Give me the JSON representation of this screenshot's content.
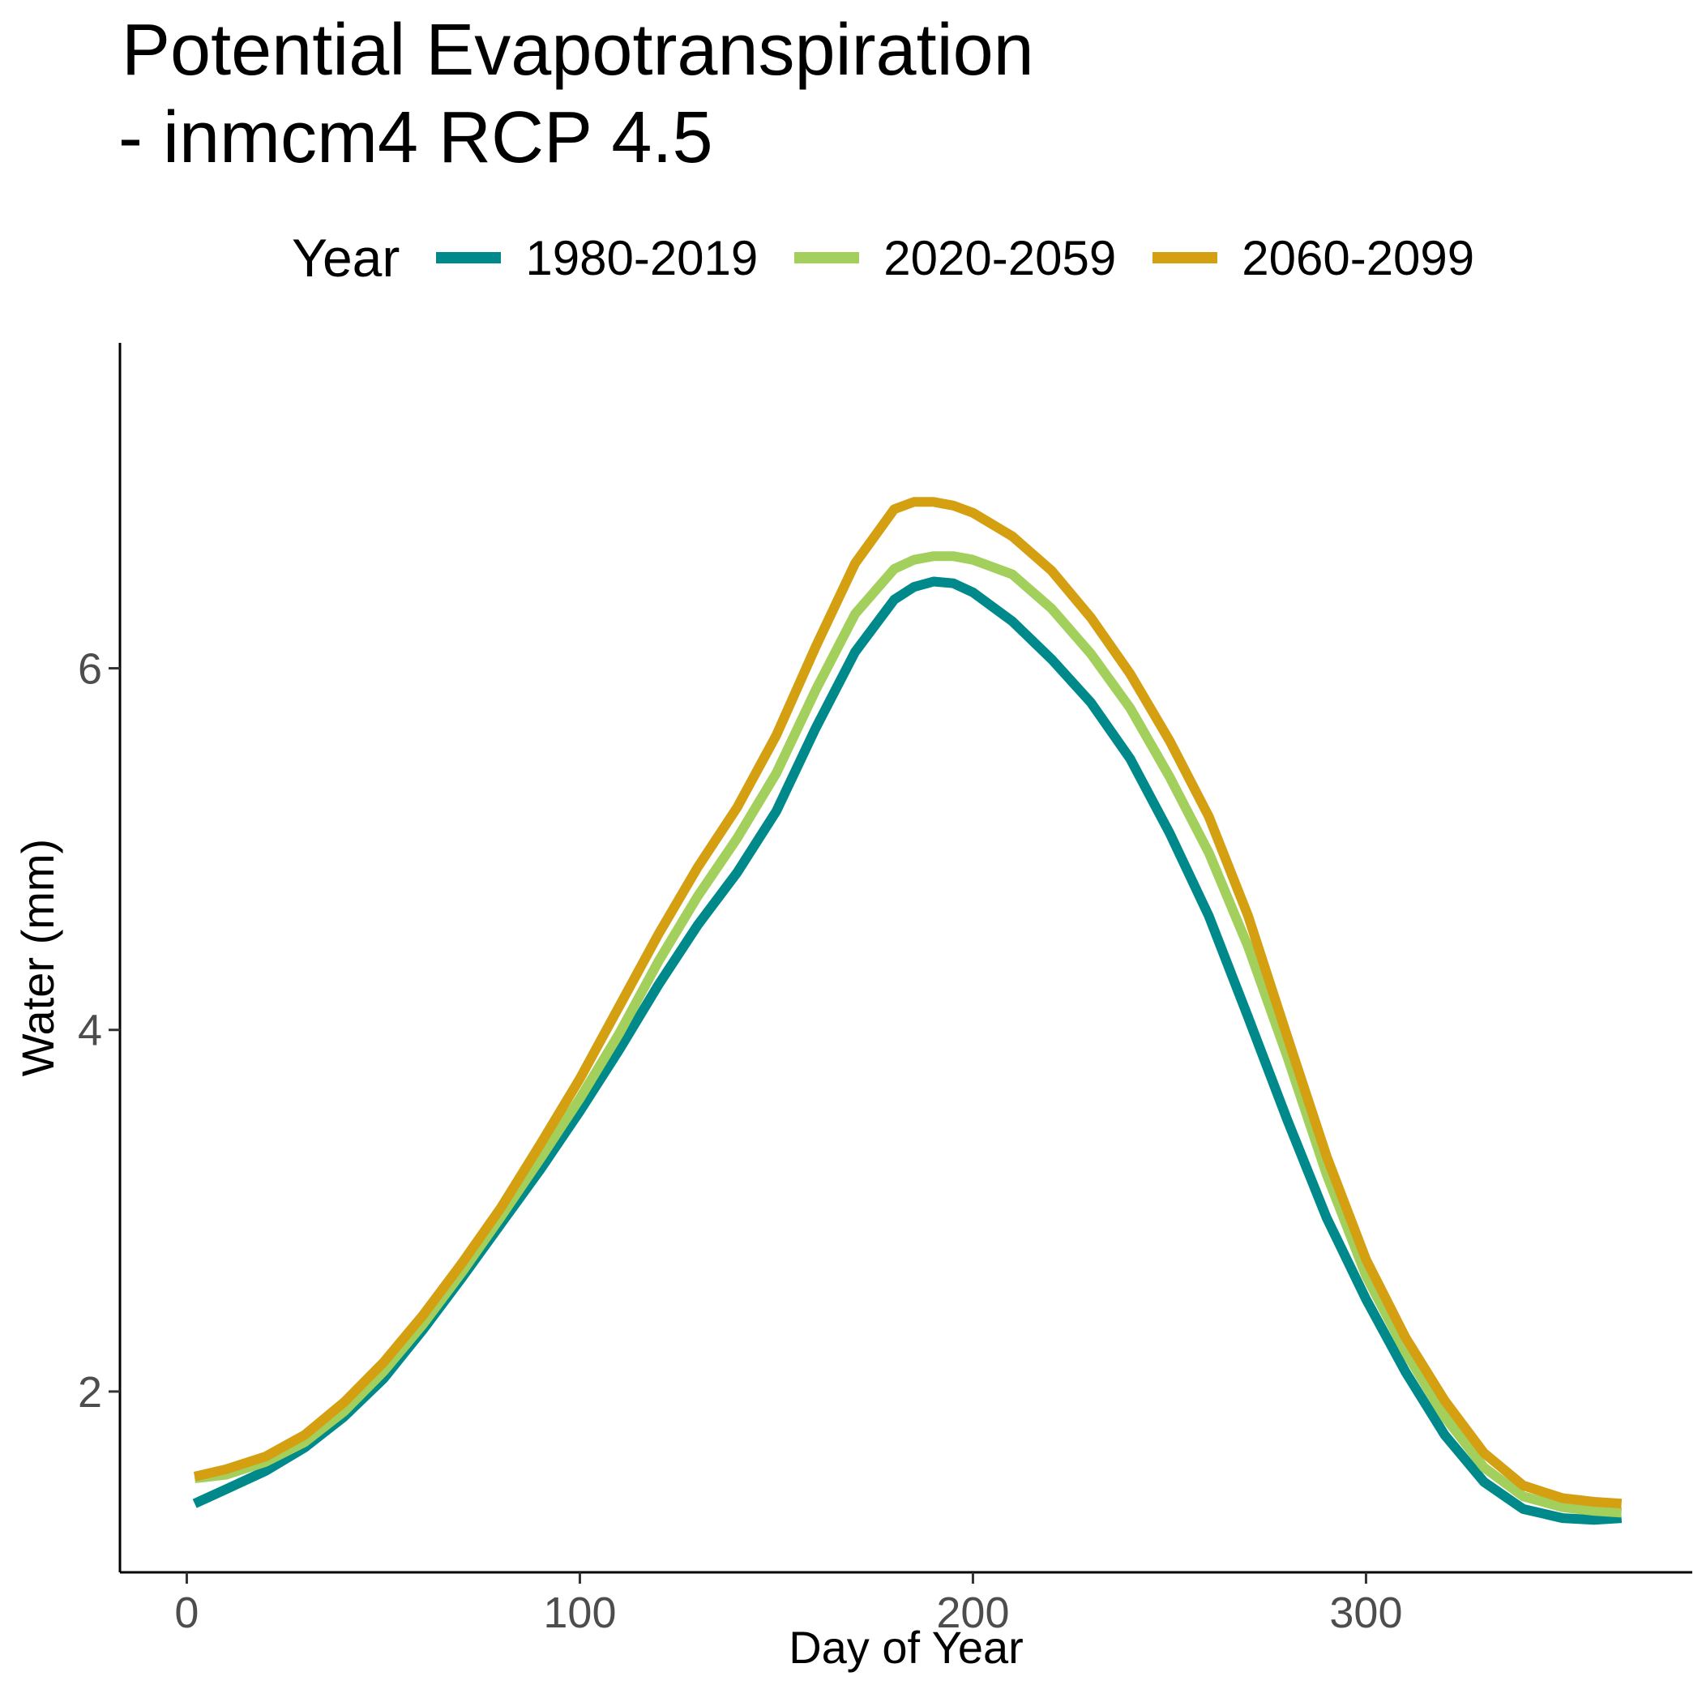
{
  "chart_data": {
    "type": "line",
    "title_line1": "Potential Evapotranspiration",
    "title_line2": "- inmcm4 RCP 4.5",
    "xlabel": "Day of Year",
    "ylabel": "Water (mm)",
    "legend_title": "Year",
    "legend_position": "top",
    "grid": false,
    "xlim": [
      -17,
      383
    ],
    "ylim": [
      1.0,
      7.8
    ],
    "x_ticks": [
      0,
      100,
      200,
      300
    ],
    "y_ticks": [
      2,
      4,
      6
    ],
    "x": [
      2,
      10,
      20,
      30,
      40,
      50,
      60,
      70,
      80,
      90,
      100,
      110,
      120,
      130,
      140,
      150,
      160,
      170,
      180,
      185,
      190,
      195,
      200,
      210,
      220,
      230,
      240,
      250,
      260,
      270,
      280,
      290,
      300,
      310,
      320,
      330,
      340,
      350,
      358,
      365
    ],
    "series": [
      {
        "name": "1980-2019",
        "color": "#00898a",
        "values": [
          1.38,
          1.46,
          1.56,
          1.69,
          1.86,
          2.07,
          2.34,
          2.63,
          2.93,
          3.23,
          3.55,
          3.89,
          4.25,
          4.58,
          4.87,
          5.21,
          5.67,
          6.09,
          6.38,
          6.45,
          6.48,
          6.47,
          6.42,
          6.26,
          6.05,
          5.81,
          5.5,
          5.09,
          4.63,
          4.07,
          3.5,
          2.96,
          2.51,
          2.11,
          1.76,
          1.5,
          1.35,
          1.3,
          1.29,
          1.3
        ]
      },
      {
        "name": "2020-2059",
        "color": "#a3cf5c",
        "values": [
          1.52,
          1.54,
          1.61,
          1.72,
          1.89,
          2.11,
          2.37,
          2.66,
          2.97,
          3.29,
          3.62,
          3.98,
          4.38,
          4.74,
          5.06,
          5.42,
          5.88,
          6.3,
          6.55,
          6.6,
          6.62,
          6.62,
          6.6,
          6.52,
          6.33,
          6.08,
          5.78,
          5.4,
          4.98,
          4.46,
          3.85,
          3.2,
          2.64,
          2.22,
          1.86,
          1.58,
          1.42,
          1.36,
          1.34,
          1.33
        ]
      },
      {
        "name": "2060-2099",
        "color": "#d4a012",
        "values": [
          1.53,
          1.57,
          1.64,
          1.76,
          1.94,
          2.16,
          2.42,
          2.71,
          3.02,
          3.37,
          3.73,
          4.13,
          4.53,
          4.9,
          5.23,
          5.63,
          6.12,
          6.58,
          6.88,
          6.92,
          6.92,
          6.9,
          6.86,
          6.73,
          6.54,
          6.28,
          5.97,
          5.6,
          5.18,
          4.63,
          3.96,
          3.3,
          2.73,
          2.3,
          1.95,
          1.66,
          1.48,
          1.41,
          1.39,
          1.38
        ]
      }
    ]
  }
}
